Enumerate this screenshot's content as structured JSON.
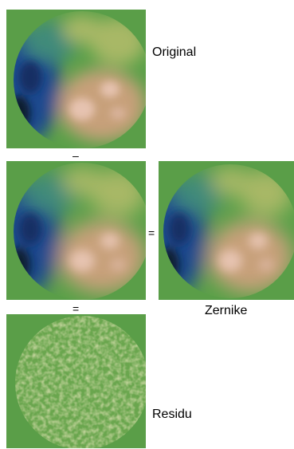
{
  "labels": {
    "original": "Original",
    "zernike": "Zernike",
    "residu": "Residu"
  },
  "operators": {
    "minus": "–",
    "equals_middle": "=",
    "equals_bottom": "="
  },
  "colors": {
    "background": "#5a9e48",
    "deep": "#0b1a2e",
    "blue": "#1f4a8e",
    "teal": "#3f8a7a",
    "green": "#5aa048",
    "yellow_green": "#a8b866",
    "tan": "#c7a07a",
    "peak": "#e6c3b0"
  }
}
